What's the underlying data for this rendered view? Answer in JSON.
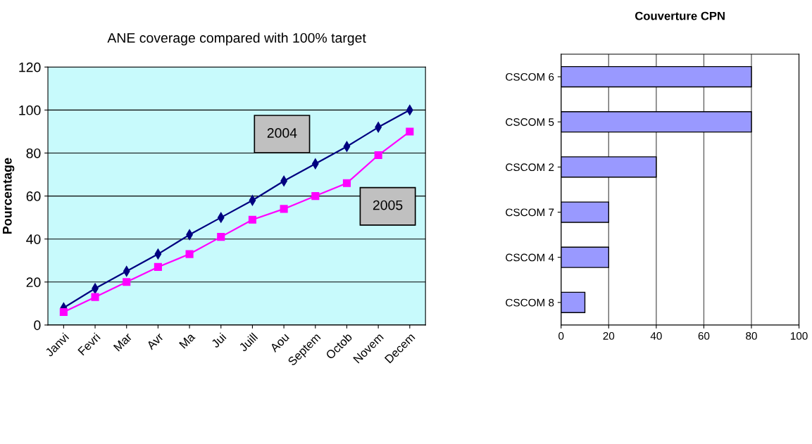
{
  "chart_data": [
    {
      "type": "line",
      "title": "ANE coverage compared with 100% target",
      "ylabel": "Pourcentage",
      "categories": [
        "Janvi",
        "Fevri",
        "Mar",
        "Avr",
        "Ma",
        "Jui",
        "Juill",
        "Aou",
        "Septem",
        "Octob",
        "Novem",
        "Decem"
      ],
      "series": [
        {
          "name": "2004",
          "color": "#000080",
          "marker": "diamond",
          "values": [
            8,
            17,
            25,
            33,
            42,
            50,
            58,
            67,
            75,
            83,
            92,
            100
          ]
        },
        {
          "name": "2005",
          "color": "#ff00ff",
          "marker": "square",
          "values": [
            6,
            13,
            20,
            27,
            33,
            41,
            49,
            54,
            60,
            66,
            79,
            90
          ]
        }
      ],
      "ylim": [
        0,
        120
      ],
      "yticks": [
        0,
        20,
        40,
        60,
        80,
        100,
        120
      ],
      "grid": "y",
      "line_style": "solid"
    },
    {
      "type": "bar",
      "orientation": "horizontal",
      "title": "Couverture CPN",
      "categories": [
        "CSCOM 6",
        "CSCOM 5",
        "CSCOM 2",
        "CSCOM 7",
        "CSCOM 4",
        "CSCOM 8"
      ],
      "values": [
        80,
        80,
        40,
        20,
        20,
        10
      ],
      "color": "#9999ff",
      "xlim": [
        0,
        100
      ],
      "xticks": [
        0,
        20,
        40,
        60,
        80,
        100
      ],
      "grid": "x"
    }
  ]
}
